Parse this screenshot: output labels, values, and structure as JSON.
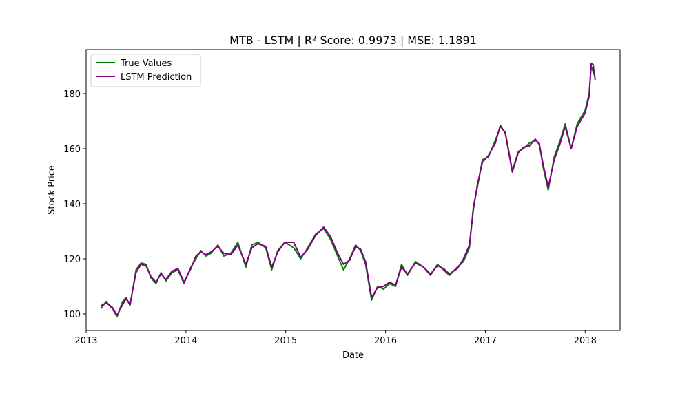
{
  "chart_data": {
    "type": "line",
    "title": "MTB - LSTM | R² Score: 0.9973 | MSE: 1.1891",
    "xlabel": "Date",
    "ylabel": "Stock Price",
    "xlim": [
      2013.0,
      2018.35
    ],
    "ylim": [
      94,
      196
    ],
    "x_ticks": [
      {
        "value": 2013,
        "label": "2013"
      },
      {
        "value": 2014,
        "label": "2014"
      },
      {
        "value": 2015,
        "label": "2015"
      },
      {
        "value": 2016,
        "label": "2016"
      },
      {
        "value": 2017,
        "label": "2017"
      },
      {
        "value": 2018,
        "label": "2018"
      }
    ],
    "y_ticks": [
      {
        "value": 100,
        "label": "100"
      },
      {
        "value": 120,
        "label": "120"
      },
      {
        "value": 140,
        "label": "140"
      },
      {
        "value": 160,
        "label": "160"
      },
      {
        "value": 180,
        "label": "180"
      }
    ],
    "grid": false,
    "legend_position": "upper-left",
    "series": [
      {
        "name": "True Values",
        "color": "#008000",
        "x": [
          2013.15,
          2013.2,
          2013.26,
          2013.31,
          2013.36,
          2013.4,
          2013.44,
          2013.5,
          2013.55,
          2013.6,
          2013.65,
          2013.7,
          2013.75,
          2013.8,
          2013.86,
          2013.92,
          2013.98,
          2014.05,
          2014.1,
          2014.15,
          2014.2,
          2014.25,
          2014.32,
          2014.38,
          2014.45,
          2014.52,
          2014.6,
          2014.66,
          2014.72,
          2014.8,
          2014.86,
          2014.92,
          2014.99,
          2015.08,
          2015.15,
          2015.22,
          2015.3,
          2015.38,
          2015.45,
          2015.52,
          2015.58,
          2015.64,
          2015.7,
          2015.75,
          2015.8,
          2015.86,
          2015.92,
          2015.98,
          2016.04,
          2016.1,
          2016.16,
          2016.22,
          2016.3,
          2016.38,
          2016.45,
          2016.52,
          2016.58,
          2016.64,
          2016.72,
          2016.78,
          2016.84,
          2016.88,
          2016.92,
          2016.97,
          2017.03,
          2017.1,
          2017.15,
          2017.2,
          2017.27,
          2017.33,
          2017.38,
          2017.44,
          2017.5,
          2017.54,
          2017.58,
          2017.63,
          2017.69,
          2017.75,
          2017.8,
          2017.86,
          2017.92,
          2018.0,
          2018.04,
          2018.06,
          2018.08,
          2018.1
        ],
        "values": [
          102,
          104.5,
          102,
          99,
          104,
          106,
          103,
          116,
          118.5,
          118,
          113,
          111,
          115,
          112,
          115,
          116,
          111,
          117,
          120,
          123,
          121,
          122,
          125,
          121,
          122,
          126,
          117,
          125,
          126,
          124,
          116,
          123,
          126,
          124,
          120,
          124,
          129,
          131,
          127,
          121,
          116,
          120,
          125,
          123,
          118,
          105,
          110,
          109,
          111,
          110,
          118,
          114,
          119,
          117,
          114,
          118,
          116,
          114,
          117,
          119,
          124,
          139,
          146,
          156,
          157,
          163,
          168,
          166,
          152,
          159,
          160,
          162,
          163,
          162,
          153,
          145,
          157,
          163,
          169,
          160,
          169,
          174,
          180,
          190,
          188,
          186
        ]
      },
      {
        "name": "LSTM Prediction",
        "color": "#800080",
        "x": [
          2013.15,
          2013.2,
          2013.26,
          2013.31,
          2013.36,
          2013.4,
          2013.44,
          2013.5,
          2013.55,
          2013.6,
          2013.65,
          2013.7,
          2013.75,
          2013.8,
          2013.86,
          2013.92,
          2013.98,
          2014.05,
          2014.1,
          2014.15,
          2014.2,
          2014.25,
          2014.32,
          2014.38,
          2014.45,
          2014.52,
          2014.6,
          2014.66,
          2014.72,
          2014.8,
          2014.86,
          2014.92,
          2014.99,
          2015.08,
          2015.15,
          2015.22,
          2015.3,
          2015.38,
          2015.45,
          2015.52,
          2015.58,
          2015.64,
          2015.7,
          2015.75,
          2015.8,
          2015.86,
          2015.92,
          2015.98,
          2016.04,
          2016.1,
          2016.16,
          2016.22,
          2016.3,
          2016.38,
          2016.45,
          2016.52,
          2016.58,
          2016.64,
          2016.72,
          2016.78,
          2016.84,
          2016.88,
          2016.92,
          2016.97,
          2017.03,
          2017.1,
          2017.15,
          2017.2,
          2017.27,
          2017.33,
          2017.38,
          2017.44,
          2017.5,
          2017.54,
          2017.58,
          2017.63,
          2017.69,
          2017.75,
          2017.8,
          2017.86,
          2017.92,
          2018.0,
          2018.04,
          2018.06,
          2018.08,
          2018.1
        ],
        "values": [
          103,
          104,
          102.5,
          99.5,
          103,
          105.5,
          103.5,
          115,
          118,
          117.5,
          113.5,
          111.5,
          114.5,
          112.5,
          115.5,
          116.5,
          111.5,
          116.5,
          121,
          122.5,
          121.5,
          122.5,
          124.5,
          122,
          121.5,
          125,
          118,
          124,
          125.5,
          124.5,
          117,
          122.5,
          126,
          126,
          120.5,
          123.5,
          128.5,
          131.5,
          128,
          122,
          118,
          119.5,
          124.5,
          123.5,
          119,
          106,
          109.5,
          110,
          111.5,
          110.5,
          117,
          114.5,
          118.5,
          117,
          114.5,
          117.5,
          116.5,
          114.5,
          116.5,
          120,
          125,
          138,
          147,
          155,
          157.5,
          162,
          168.5,
          165.5,
          151.5,
          158.5,
          160.5,
          161,
          163.5,
          161.5,
          154,
          146,
          156,
          162,
          168,
          160,
          168,
          173,
          179,
          191,
          190.5,
          185
        ]
      }
    ]
  }
}
